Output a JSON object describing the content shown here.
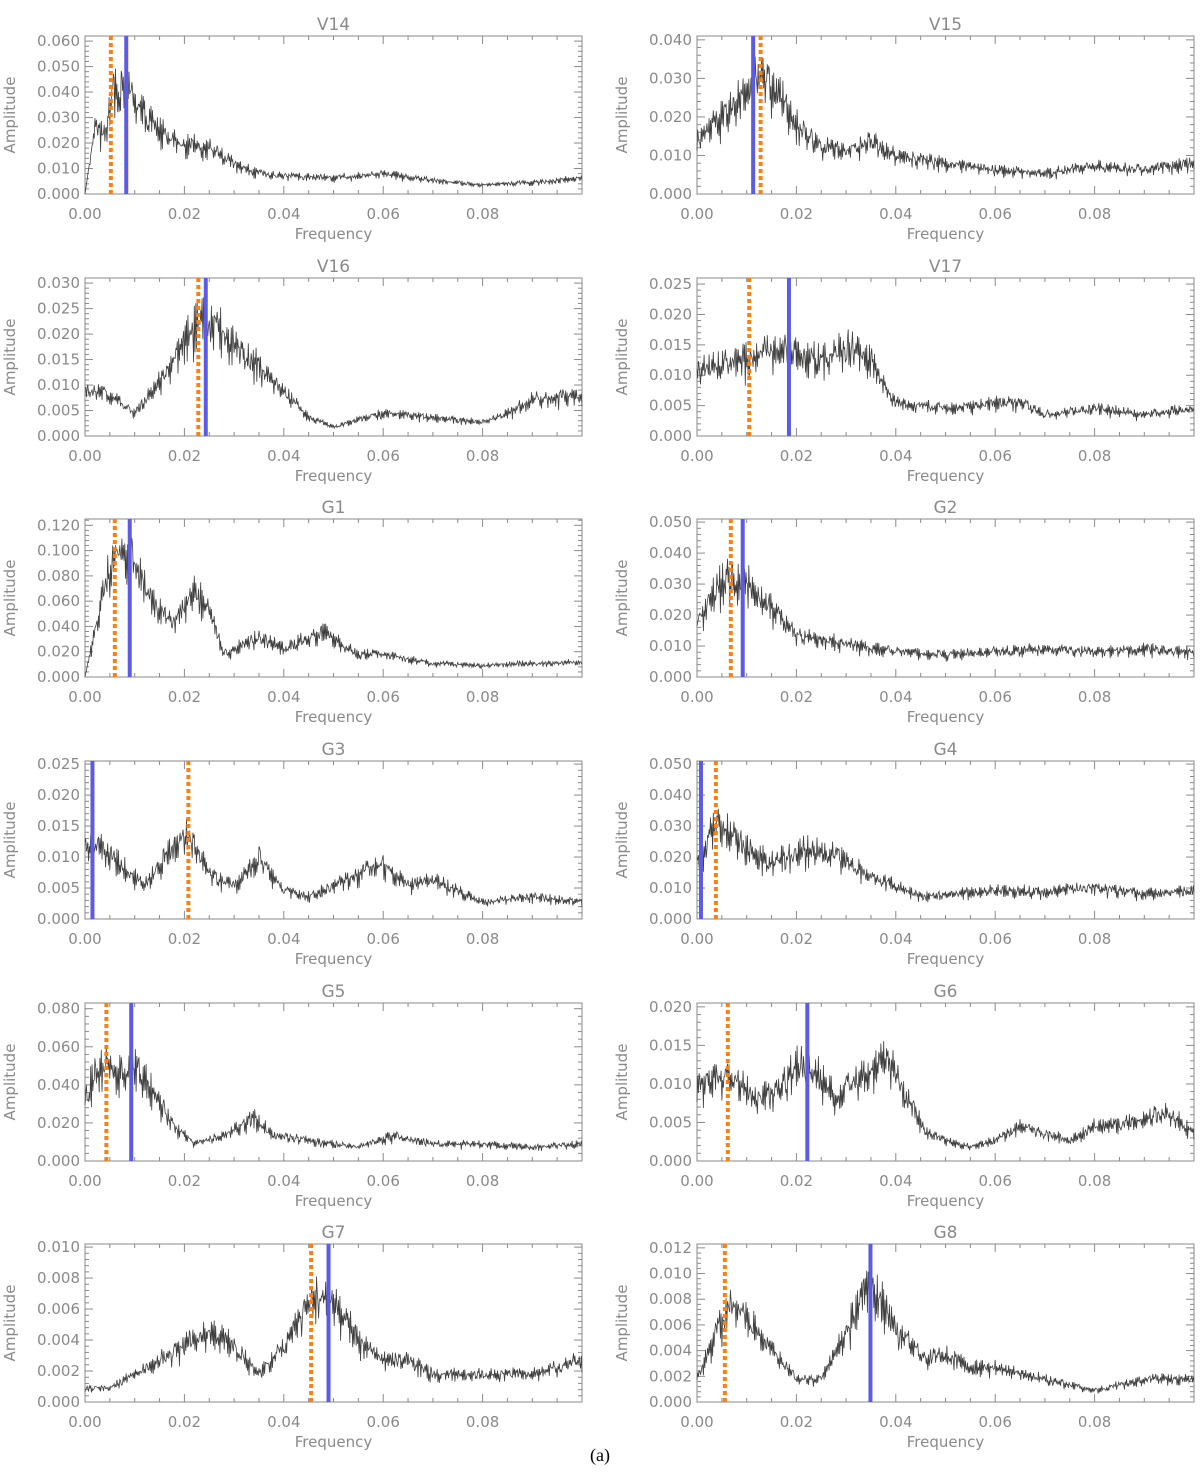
{
  "caption": "(a)",
  "x_label": "Frequency",
  "y_label": "Amplitude",
  "x_ticks": [
    "0.00",
    "0.02",
    "0.04",
    "0.06",
    "0.08"
  ],
  "colors": {
    "spectrum": "#404040",
    "solid_line": "#5b5be6",
    "dotted_line": "#ff7f0e",
    "axis": "#8a8a8a"
  },
  "chart_data": [
    {
      "type": "line",
      "title": "V14",
      "xlim": [
        0,
        0.1
      ],
      "ylim": [
        0,
        0.062
      ],
      "y_ticks": [
        "0.000",
        "0.010",
        "0.020",
        "0.030",
        "0.040",
        "0.050",
        "0.060"
      ],
      "y_tick_values": [
        0,
        0.01,
        0.02,
        0.03,
        0.04,
        0.05,
        0.06
      ],
      "dotted_line_x": 0.0052,
      "solid_line_x": 0.0083,
      "spectrum_points": [
        [
          0,
          0
        ],
        [
          0.002,
          0.03
        ],
        [
          0.004,
          0.025
        ],
        [
          0.006,
          0.048
        ],
        [
          0.008,
          0.045
        ],
        [
          0.01,
          0.042
        ],
        [
          0.012,
          0.035
        ],
        [
          0.015,
          0.028
        ],
        [
          0.02,
          0.022
        ],
        [
          0.025,
          0.02
        ],
        [
          0.03,
          0.013
        ],
        [
          0.035,
          0.009
        ],
        [
          0.04,
          0.008
        ],
        [
          0.05,
          0.007
        ],
        [
          0.06,
          0.009
        ],
        [
          0.07,
          0.006
        ],
        [
          0.08,
          0.004
        ],
        [
          0.09,
          0.005
        ],
        [
          0.1,
          0.007
        ]
      ]
    },
    {
      "type": "line",
      "title": "V15",
      "xlim": [
        0,
        0.1
      ],
      "ylim": [
        0,
        0.041
      ],
      "y_ticks": [
        "0.000",
        "0.010",
        "0.020",
        "0.030",
        "0.040"
      ],
      "y_tick_values": [
        0,
        0.01,
        0.02,
        0.03,
        0.04
      ],
      "dotted_line_x": 0.0128,
      "solid_line_x": 0.0113,
      "spectrum_points": [
        [
          0,
          0.015
        ],
        [
          0.005,
          0.022
        ],
        [
          0.01,
          0.03
        ],
        [
          0.013,
          0.034
        ],
        [
          0.016,
          0.03
        ],
        [
          0.02,
          0.02
        ],
        [
          0.025,
          0.014
        ],
        [
          0.03,
          0.012
        ],
        [
          0.035,
          0.015
        ],
        [
          0.04,
          0.011
        ],
        [
          0.05,
          0.009
        ],
        [
          0.06,
          0.007
        ],
        [
          0.07,
          0.006
        ],
        [
          0.08,
          0.008
        ],
        [
          0.09,
          0.007
        ],
        [
          0.1,
          0.009
        ]
      ]
    },
    {
      "type": "line",
      "title": "V16",
      "xlim": [
        0,
        0.1
      ],
      "ylim": [
        0,
        0.031
      ],
      "y_ticks": [
        "0.000",
        "0.005",
        "0.010",
        "0.015",
        "0.020",
        "0.025",
        "0.030"
      ],
      "y_tick_values": [
        0,
        0.005,
        0.01,
        0.015,
        0.02,
        0.025,
        0.03
      ],
      "dotted_line_x": 0.0228,
      "solid_line_x": 0.0243,
      "spectrum_points": [
        [
          0,
          0.01
        ],
        [
          0.005,
          0.009
        ],
        [
          0.01,
          0.005
        ],
        [
          0.015,
          0.012
        ],
        [
          0.02,
          0.02
        ],
        [
          0.023,
          0.025
        ],
        [
          0.027,
          0.023
        ],
        [
          0.032,
          0.018
        ],
        [
          0.038,
          0.012
        ],
        [
          0.045,
          0.004
        ],
        [
          0.05,
          0.002
        ],
        [
          0.06,
          0.005
        ],
        [
          0.07,
          0.004
        ],
        [
          0.08,
          0.003
        ],
        [
          0.085,
          0.005
        ],
        [
          0.09,
          0.008
        ],
        [
          0.1,
          0.009
        ]
      ]
    },
    {
      "type": "line",
      "title": "V17",
      "xlim": [
        0,
        0.1
      ],
      "ylim": [
        0,
        0.026
      ],
      "y_ticks": [
        "0.000",
        "0.005",
        "0.010",
        "0.015",
        "0.020",
        "0.025"
      ],
      "y_tick_values": [
        0,
        0.005,
        0.01,
        0.015,
        0.02,
        0.025
      ],
      "dotted_line_x": 0.0105,
      "solid_line_x": 0.0185,
      "spectrum_points": [
        [
          0,
          0.012
        ],
        [
          0.005,
          0.013
        ],
        [
          0.01,
          0.014
        ],
        [
          0.015,
          0.016
        ],
        [
          0.02,
          0.015
        ],
        [
          0.025,
          0.014
        ],
        [
          0.03,
          0.016
        ],
        [
          0.035,
          0.014
        ],
        [
          0.04,
          0.006
        ],
        [
          0.05,
          0.005
        ],
        [
          0.06,
          0.006
        ],
        [
          0.065,
          0.006
        ],
        [
          0.07,
          0.004
        ],
        [
          0.08,
          0.005
        ],
        [
          0.09,
          0.004
        ],
        [
          0.1,
          0.005
        ]
      ]
    },
    {
      "type": "line",
      "title": "G1",
      "xlim": [
        0,
        0.1
      ],
      "ylim": [
        0,
        0.125
      ],
      "y_ticks": [
        "0.000",
        "0.020",
        "0.040",
        "0.060",
        "0.080",
        "0.100",
        "0.120"
      ],
      "y_tick_values": [
        0,
        0.02,
        0.04,
        0.06,
        0.08,
        0.1,
        0.12
      ],
      "dotted_line_x": 0.006,
      "solid_line_x": 0.009,
      "spectrum_points": [
        [
          0,
          0
        ],
        [
          0.002,
          0.04
        ],
        [
          0.004,
          0.08
        ],
        [
          0.006,
          0.105
        ],
        [
          0.009,
          0.11
        ],
        [
          0.012,
          0.08
        ],
        [
          0.015,
          0.06
        ],
        [
          0.018,
          0.05
        ],
        [
          0.022,
          0.075
        ],
        [
          0.025,
          0.06
        ],
        [
          0.028,
          0.02
        ],
        [
          0.035,
          0.035
        ],
        [
          0.04,
          0.025
        ],
        [
          0.048,
          0.04
        ],
        [
          0.055,
          0.02
        ],
        [
          0.06,
          0.02
        ],
        [
          0.07,
          0.012
        ],
        [
          0.08,
          0.01
        ],
        [
          0.09,
          0.012
        ],
        [
          0.1,
          0.013
        ]
      ]
    },
    {
      "type": "line",
      "title": "G2",
      "xlim": [
        0,
        0.1
      ],
      "ylim": [
        0,
        0.051
      ],
      "y_ticks": [
        "0.000",
        "0.010",
        "0.020",
        "0.030",
        "0.040",
        "0.050"
      ],
      "y_tick_values": [
        0,
        0.01,
        0.02,
        0.03,
        0.04,
        0.05
      ],
      "dotted_line_x": 0.0068,
      "solid_line_x": 0.0092,
      "spectrum_points": [
        [
          0,
          0.02
        ],
        [
          0.005,
          0.035
        ],
        [
          0.01,
          0.035
        ],
        [
          0.015,
          0.025
        ],
        [
          0.02,
          0.015
        ],
        [
          0.03,
          0.012
        ],
        [
          0.04,
          0.009
        ],
        [
          0.05,
          0.008
        ],
        [
          0.06,
          0.009
        ],
        [
          0.07,
          0.01
        ],
        [
          0.08,
          0.009
        ],
        [
          0.09,
          0.01
        ],
        [
          0.1,
          0.009
        ]
      ]
    },
    {
      "type": "line",
      "title": "G3",
      "xlim": [
        0,
        0.1
      ],
      "ylim": [
        0,
        0.0255
      ],
      "y_ticks": [
        "0.000",
        "0.005",
        "0.010",
        "0.015",
        "0.020",
        "0.025"
      ],
      "y_tick_values": [
        0,
        0.005,
        0.01,
        0.015,
        0.02,
        0.025
      ],
      "dotted_line_x": 0.0208,
      "solid_line_x": 0.0015,
      "spectrum_points": [
        [
          0,
          0.012
        ],
        [
          0.003,
          0.013
        ],
        [
          0.007,
          0.01
        ],
        [
          0.012,
          0.006
        ],
        [
          0.017,
          0.012
        ],
        [
          0.021,
          0.015
        ],
        [
          0.025,
          0.008
        ],
        [
          0.03,
          0.006
        ],
        [
          0.035,
          0.011
        ],
        [
          0.04,
          0.005
        ],
        [
          0.045,
          0.004
        ],
        [
          0.055,
          0.008
        ],
        [
          0.06,
          0.01
        ],
        [
          0.065,
          0.006
        ],
        [
          0.07,
          0.007
        ],
        [
          0.08,
          0.003
        ],
        [
          0.09,
          0.004
        ],
        [
          0.1,
          0.003
        ]
      ]
    },
    {
      "type": "line",
      "title": "G4",
      "xlim": [
        0,
        0.1
      ],
      "ylim": [
        0,
        0.051
      ],
      "y_ticks": [
        "0.000",
        "0.010",
        "0.020",
        "0.030",
        "0.040",
        "0.050"
      ],
      "y_tick_values": [
        0,
        0.01,
        0.02,
        0.03,
        0.04,
        0.05
      ],
      "dotted_line_x": 0.0038,
      "solid_line_x": 0.0008,
      "spectrum_points": [
        [
          0,
          0.02
        ],
        [
          0.004,
          0.035
        ],
        [
          0.01,
          0.025
        ],
        [
          0.015,
          0.02
        ],
        [
          0.022,
          0.025
        ],
        [
          0.028,
          0.022
        ],
        [
          0.035,
          0.015
        ],
        [
          0.04,
          0.012
        ],
        [
          0.045,
          0.008
        ],
        [
          0.05,
          0.009
        ],
        [
          0.06,
          0.01
        ],
        [
          0.07,
          0.01
        ],
        [
          0.08,
          0.011
        ],
        [
          0.09,
          0.009
        ],
        [
          0.1,
          0.01
        ]
      ]
    },
    {
      "type": "line",
      "title": "G5",
      "xlim": [
        0,
        0.1
      ],
      "ylim": [
        0,
        0.083
      ],
      "y_ticks": [
        "0.000",
        "0.020",
        "0.040",
        "0.060",
        "0.080"
      ],
      "y_tick_values": [
        0,
        0.02,
        0.04,
        0.06,
        0.08
      ],
      "dotted_line_x": 0.0043,
      "solid_line_x": 0.0093,
      "spectrum_points": [
        [
          0,
          0.04
        ],
        [
          0.002,
          0.05
        ],
        [
          0.004,
          0.058
        ],
        [
          0.007,
          0.05
        ],
        [
          0.01,
          0.055
        ],
        [
          0.014,
          0.04
        ],
        [
          0.018,
          0.02
        ],
        [
          0.022,
          0.01
        ],
        [
          0.028,
          0.015
        ],
        [
          0.034,
          0.025
        ],
        [
          0.038,
          0.015
        ],
        [
          0.045,
          0.012
        ],
        [
          0.05,
          0.01
        ],
        [
          0.055,
          0.008
        ],
        [
          0.062,
          0.015
        ],
        [
          0.07,
          0.01
        ],
        [
          0.08,
          0.01
        ],
        [
          0.09,
          0.008
        ],
        [
          0.1,
          0.01
        ]
      ]
    },
    {
      "type": "line",
      "title": "G6",
      "xlim": [
        0,
        0.1
      ],
      "ylim": [
        0,
        0.0205
      ],
      "y_ticks": [
        "0.000",
        "0.005",
        "0.010",
        "0.015",
        "0.020"
      ],
      "y_tick_values": [
        0,
        0.005,
        0.01,
        0.015,
        0.02
      ],
      "dotted_line_x": 0.0062,
      "solid_line_x": 0.0222,
      "spectrum_points": [
        [
          0,
          0.011
        ],
        [
          0.004,
          0.012
        ],
        [
          0.008,
          0.012
        ],
        [
          0.012,
          0.009
        ],
        [
          0.016,
          0.01
        ],
        [
          0.02,
          0.014
        ],
        [
          0.024,
          0.013
        ],
        [
          0.028,
          0.009
        ],
        [
          0.033,
          0.012
        ],
        [
          0.038,
          0.015
        ],
        [
          0.042,
          0.01
        ],
        [
          0.046,
          0.004
        ],
        [
          0.05,
          0.003
        ],
        [
          0.055,
          0.002
        ],
        [
          0.06,
          0.003
        ],
        [
          0.065,
          0.005
        ],
        [
          0.07,
          0.004
        ],
        [
          0.075,
          0.003
        ],
        [
          0.08,
          0.005
        ],
        [
          0.09,
          0.006
        ],
        [
          0.095,
          0.007
        ],
        [
          0.1,
          0.004
        ]
      ]
    },
    {
      "type": "line",
      "title": "G7",
      "xlim": [
        0,
        0.1
      ],
      "ylim": [
        0,
        0.0102
      ],
      "y_ticks": [
        "0.000",
        "0.002",
        "0.004",
        "0.006",
        "0.008",
        "0.010"
      ],
      "y_tick_values": [
        0,
        0.002,
        0.004,
        0.006,
        0.008,
        0.01
      ],
      "dotted_line_x": 0.0455,
      "solid_line_x": 0.049,
      "spectrum_points": [
        [
          0,
          0.001
        ],
        [
          0.005,
          0.001
        ],
        [
          0.01,
          0.002
        ],
        [
          0.015,
          0.003
        ],
        [
          0.02,
          0.004
        ],
        [
          0.025,
          0.005
        ],
        [
          0.03,
          0.004
        ],
        [
          0.035,
          0.002
        ],
        [
          0.04,
          0.004
        ],
        [
          0.043,
          0.006
        ],
        [
          0.046,
          0.0075
        ],
        [
          0.049,
          0.008
        ],
        [
          0.052,
          0.006
        ],
        [
          0.056,
          0.004
        ],
        [
          0.06,
          0.003
        ],
        [
          0.065,
          0.003
        ],
        [
          0.07,
          0.002
        ],
        [
          0.08,
          0.002
        ],
        [
          0.09,
          0.002
        ],
        [
          0.1,
          0.003
        ]
      ]
    },
    {
      "type": "line",
      "title": "G8",
      "xlim": [
        0,
        0.1
      ],
      "ylim": [
        0,
        0.0123
      ],
      "y_ticks": [
        "0.000",
        "0.002",
        "0.004",
        "0.006",
        "0.008",
        "0.010",
        "0.012"
      ],
      "y_tick_values": [
        0,
        0.002,
        0.004,
        0.006,
        0.008,
        0.01,
        0.012
      ],
      "dotted_line_x": 0.0056,
      "solid_line_x": 0.0349,
      "spectrum_points": [
        [
          0,
          0.002
        ],
        [
          0.003,
          0.005
        ],
        [
          0.006,
          0.008
        ],
        [
          0.009,
          0.008
        ],
        [
          0.012,
          0.006
        ],
        [
          0.016,
          0.004
        ],
        [
          0.02,
          0.002
        ],
        [
          0.025,
          0.002
        ],
        [
          0.03,
          0.006
        ],
        [
          0.034,
          0.01
        ],
        [
          0.037,
          0.009
        ],
        [
          0.04,
          0.006
        ],
        [
          0.045,
          0.004
        ],
        [
          0.05,
          0.004
        ],
        [
          0.055,
          0.003
        ],
        [
          0.06,
          0.003
        ],
        [
          0.07,
          0.002
        ],
        [
          0.08,
          0.001
        ],
        [
          0.09,
          0.002
        ],
        [
          0.1,
          0.002
        ]
      ]
    }
  ]
}
